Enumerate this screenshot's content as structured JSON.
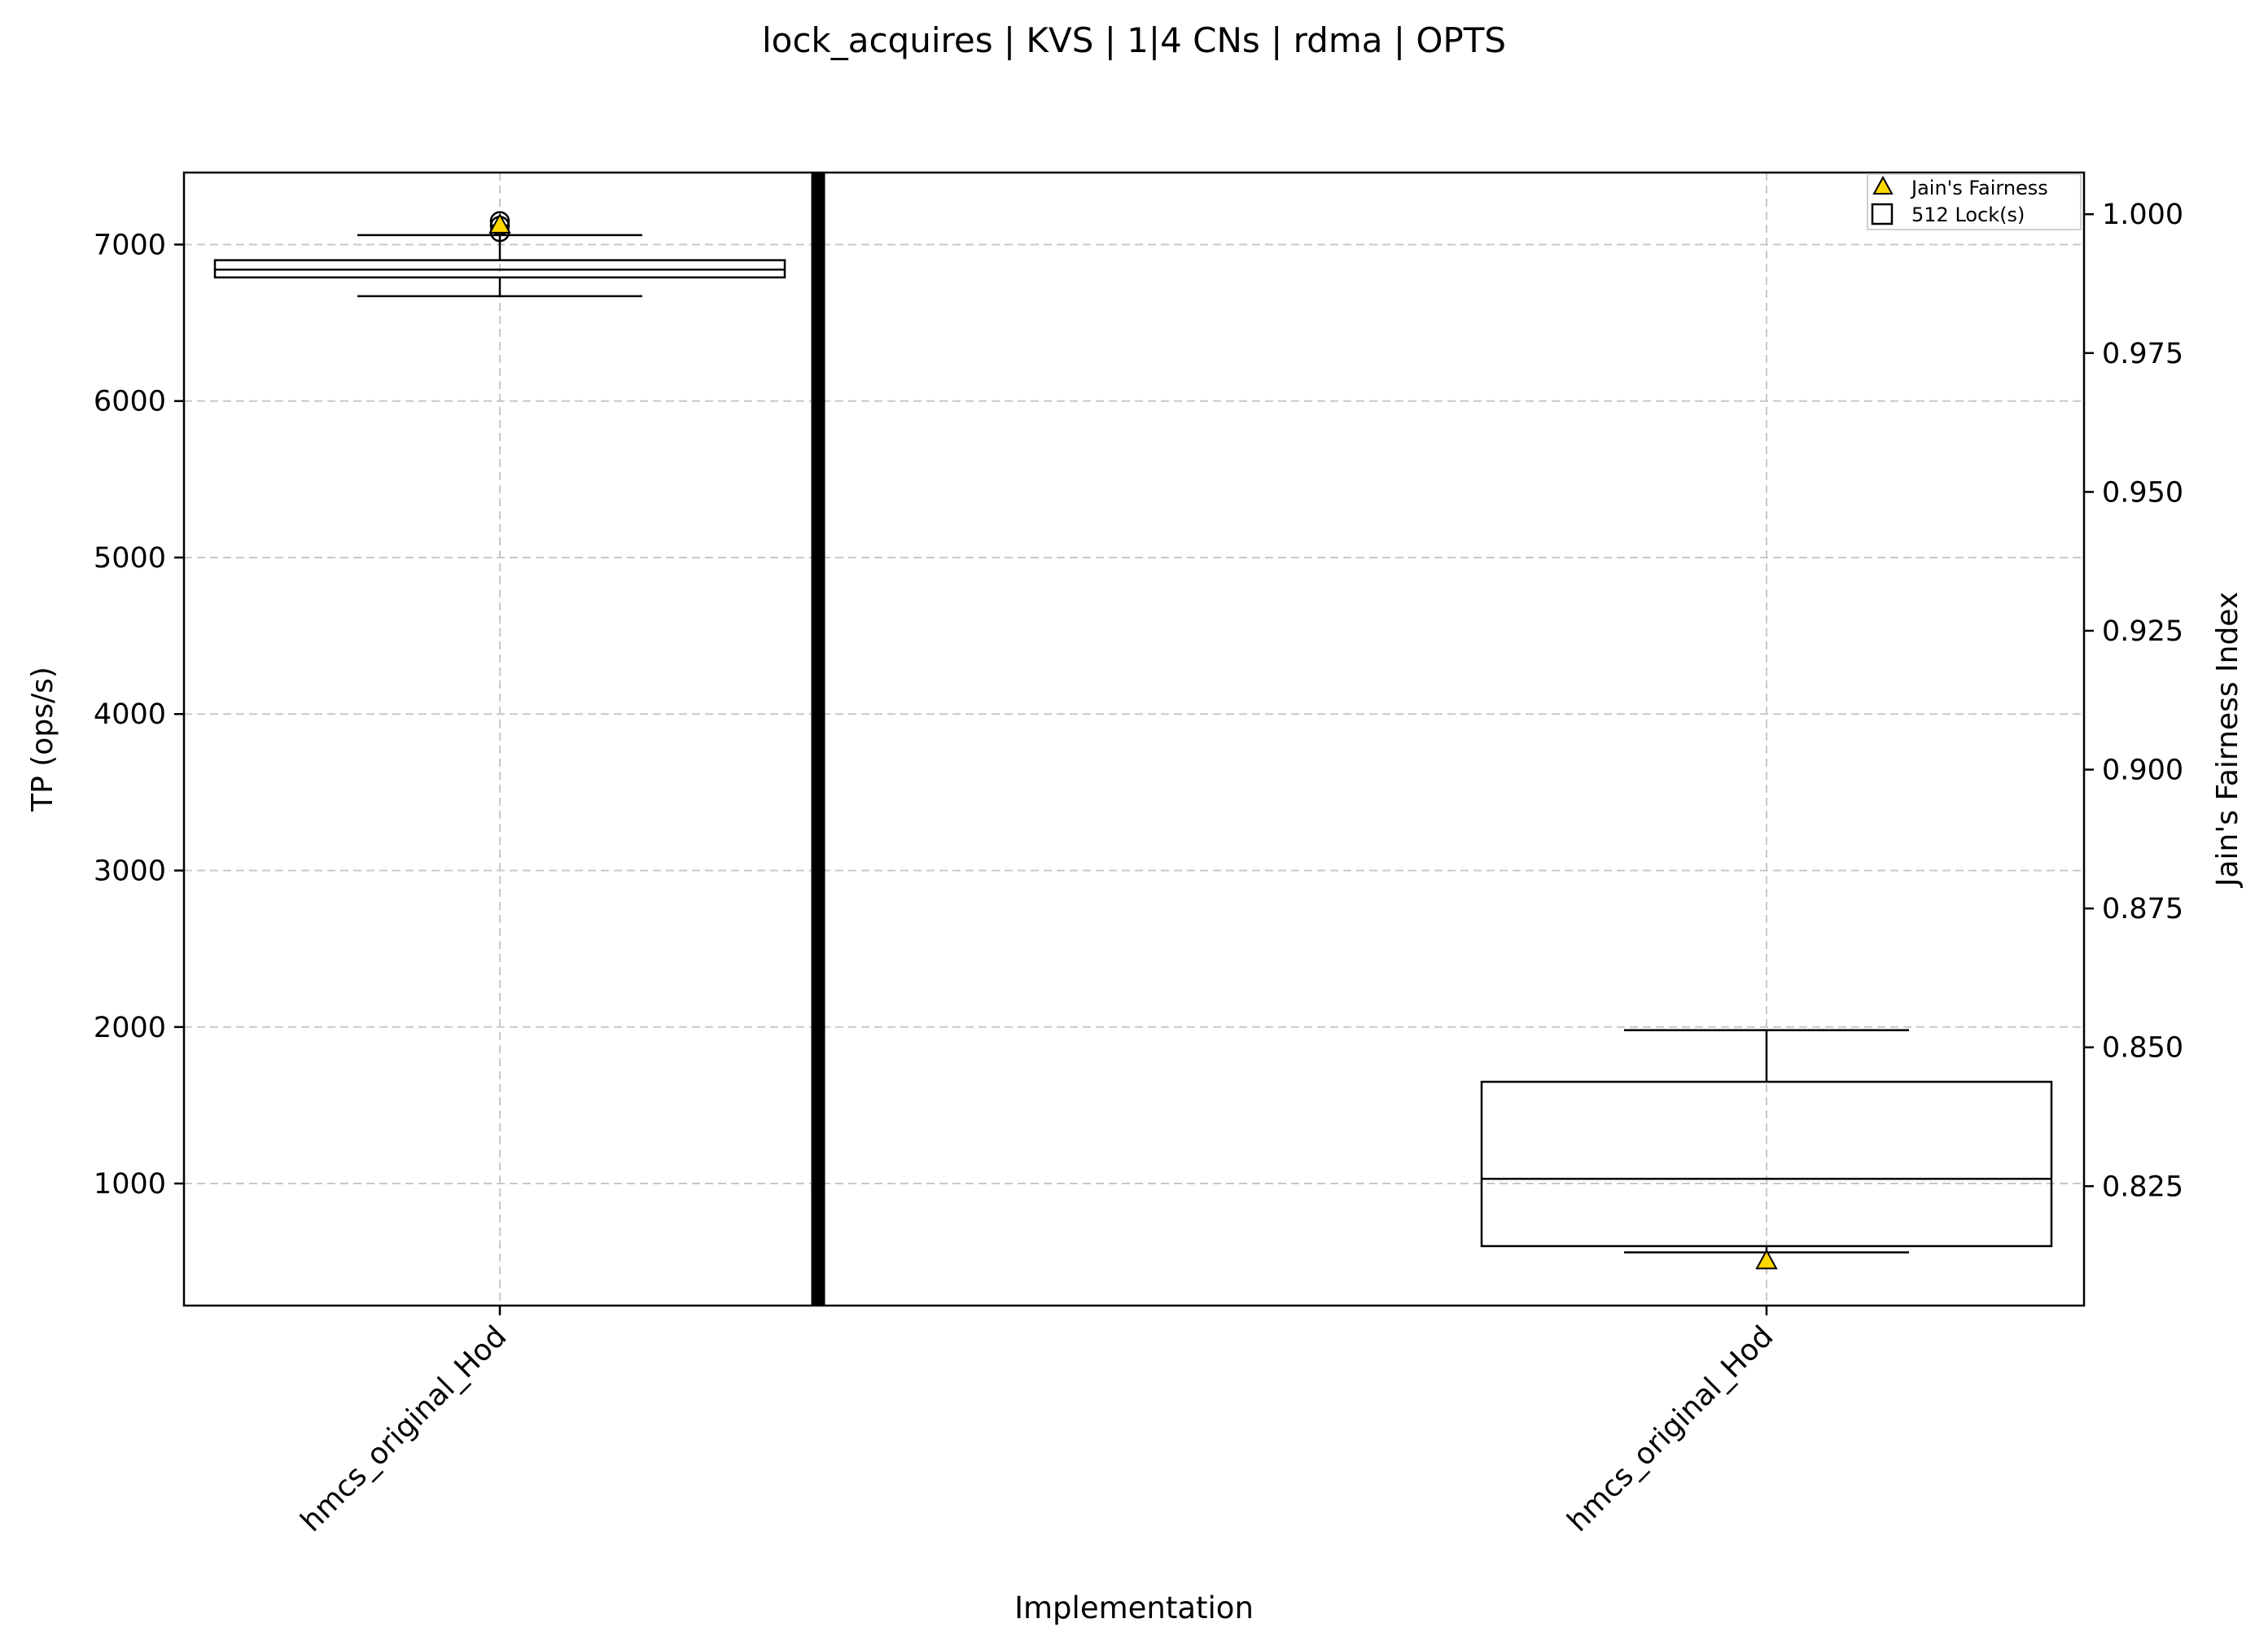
{
  "chart_data": {
    "type": "box",
    "title": "lock_acquires | KVS | 1|4 CNs | rdma | OPTS",
    "xlabel": "Implementation",
    "ylabel": "TP (ops/s)",
    "ylabel_right": "Jain's Fairness Index",
    "ylim": [
      220,
      7460
    ],
    "ylim_right": [
      0.8035,
      1.0075
    ],
    "yticks": [
      1000,
      2000,
      3000,
      4000,
      5000,
      6000,
      7000
    ],
    "yticks_right": [
      0.825,
      0.85,
      0.875,
      0.9,
      0.925,
      0.95,
      0.975,
      1.0
    ],
    "yticklabels_right": [
      "0.825",
      "0.850",
      "0.875",
      "0.900",
      "0.925",
      "0.950",
      "0.975",
      "1.000"
    ],
    "grid": true,
    "legend_position": "top-right",
    "legend": [
      {
        "label": "Jain's Fairness",
        "marker": "triangle",
        "color": "#ffd700"
      },
      {
        "label": "512 Lock(s)",
        "marker": "square",
        "color": "#ffffff"
      }
    ],
    "groups": [
      {
        "label": "hmcs_original_Hod",
        "box": {
          "whisker_low": 6670,
          "q1": 6790,
          "median": 6840,
          "q3": 6900,
          "whisker_high": 7060
        },
        "fliers": [
          7080,
          7120,
          7150
        ],
        "fairness": 0.998
      },
      {
        "label": "hmcs_original_Hod",
        "box": {
          "whisker_low": 560,
          "q1": 600,
          "median": 1030,
          "q3": 1650,
          "whisker_high": 1980
        },
        "fliers": [],
        "fairness": 0.8115
      }
    ],
    "colors": {
      "box": "#000000",
      "grid": "#c8c8c8",
      "marker": "#ffd700",
      "separator": "#000000"
    }
  }
}
